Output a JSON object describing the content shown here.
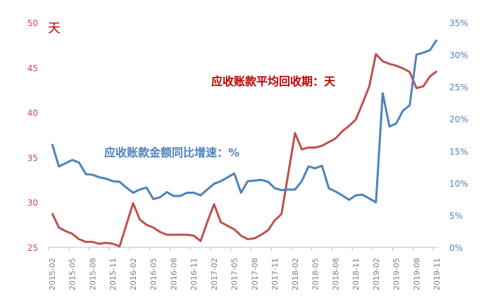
{
  "chart_data": {
    "type": "line",
    "title": "",
    "left_unit": "天",
    "ylim_left": [
      25,
      50
    ],
    "yticks_left": [
      "25",
      "30",
      "35",
      "40",
      "45",
      "50"
    ],
    "ylim_right": [
      0,
      35
    ],
    "yticks_right": [
      "0%",
      "5%",
      "10%",
      "15%",
      "20%",
      "25%",
      "30%",
      "35%"
    ],
    "grid": false,
    "x_tick_labels": [
      "2015-02",
      "2015-05",
      "2015-08",
      "2015-11",
      "2016-02",
      "2016-05",
      "2016-08",
      "2016-11",
      "2017-02",
      "2017-05",
      "2017-08",
      "2017-11",
      "2018-02",
      "2018-05",
      "2018-08",
      "2018-11",
      "2019-02",
      "2019-05",
      "2019-08",
      "2019-11"
    ],
    "x_start": "2015-02",
    "x_end": "2019-11",
    "series": [
      {
        "name": "应收账款平均回收期：天",
        "axis": "left",
        "color": "#c0504d",
        "values": [
          28.8,
          27.2,
          26.8,
          26.5,
          25.9,
          25.6,
          25.6,
          25.4,
          25.5,
          25.4,
          25.1,
          27.5,
          29.9,
          28.1,
          27.5,
          27.2,
          26.7,
          26.4,
          26.4,
          26.4,
          26.4,
          26.3,
          25.7,
          27.8,
          29.8,
          27.8,
          27.4,
          27.0,
          26.3,
          25.9,
          26.0,
          26.4,
          26.9,
          28.0,
          28.7,
          33.2,
          37.7,
          35.9,
          36.1,
          36.1,
          36.3,
          36.7,
          37.1,
          37.9,
          38.5,
          39.2,
          41.0,
          42.9,
          46.5,
          45.7,
          45.4,
          45.2,
          44.9,
          44.5,
          42.7,
          42.9,
          44.0,
          44.6
        ]
      },
      {
        "name": "应收账款金额同比增速：%",
        "axis": "right",
        "color": "#4f81bd",
        "values": [
          16.1,
          12.6,
          13.1,
          13.6,
          13.2,
          11.4,
          11.3,
          10.9,
          10.7,
          10.3,
          10.2,
          9.3,
          8.5,
          9.0,
          9.3,
          7.5,
          7.8,
          8.6,
          8.0,
          8.0,
          8.5,
          8.5,
          8.1,
          9.0,
          9.9,
          10.3,
          10.9,
          11.5,
          8.5,
          10.3,
          10.4,
          10.5,
          10.2,
          9.2,
          8.9,
          9.0,
          9.0,
          10.3,
          12.6,
          12.3,
          12.7,
          9.2,
          8.7,
          8.1,
          7.4,
          8.1,
          8.2,
          7.6,
          7.0,
          24.0,
          18.8,
          19.3,
          21.3,
          22.1,
          30.0,
          30.3,
          30.7,
          32.3
        ]
      }
    ]
  }
}
